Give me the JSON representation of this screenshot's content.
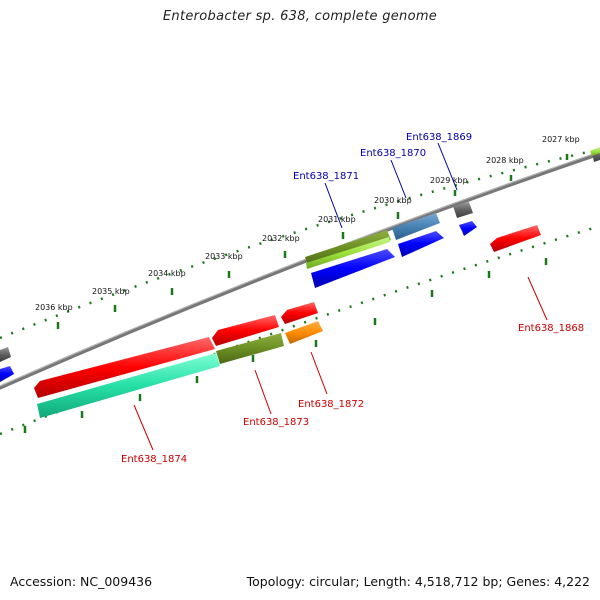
{
  "header": {
    "title": "Enterobacter sp. 638, complete genome"
  },
  "footer": {
    "accession": "Accession: NC_009436",
    "topology": "Topology: circular; Length: 4,518,712 bp; Genes: 4,222"
  },
  "scale_labels": [
    "2027 kbp",
    "2028 kbp",
    "2029 kbp",
    "2030 kbp",
    "2031 kbp",
    "2032 kbp",
    "2033 kbp",
    "2034 kbp",
    "2035 kbp",
    "2036 kbp"
  ],
  "gene_labels": {
    "top": [
      "Ent638_1869",
      "Ent638_1870",
      "Ent638_1871"
    ],
    "bottom": [
      "Ent638_1868",
      "Ent638_1872",
      "Ent638_1873",
      "Ent638_1874"
    ]
  },
  "colors": {
    "backbone": "#888888",
    "scale_ticks": "#1a7a1a",
    "red": "#ff0000",
    "blue": "#0000ff",
    "olive": "#6b8e23",
    "lime": "#9be23c",
    "steel_blue": "#4682b4",
    "grey": "#606060",
    "orange": "#ff8c00",
    "aquamarine": "#26e0a6"
  }
}
